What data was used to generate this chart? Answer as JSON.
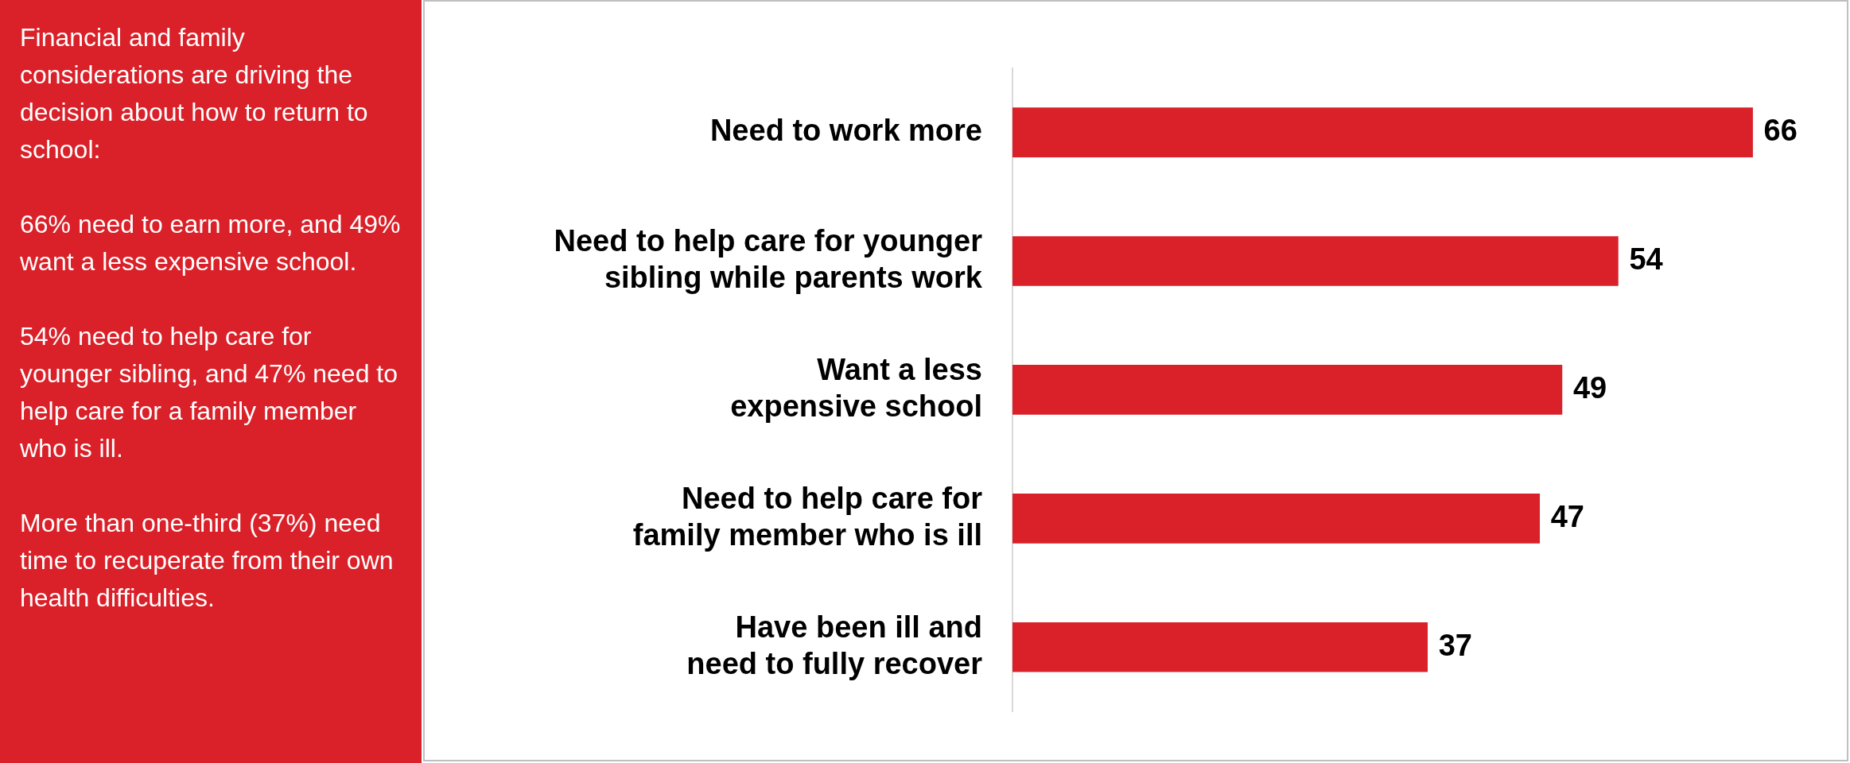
{
  "chart_data": {
    "type": "bar",
    "orientation": "horizontal",
    "categories": [
      "Need to work more",
      "Need to help care for younger sibling while parents work",
      "Want a less expensive school",
      "Need to help care for family member who is ill",
      "Have been ill and need to fully recover"
    ],
    "values": [
      66,
      54,
      49,
      47,
      37
    ],
    "color": "#da2028",
    "data_labels": true,
    "legend": false,
    "annotations": [
      "Financial and family considerations are driving the decision about how to return to school:",
      "66% need to earn more, and 49% want a less expensive school.",
      "54% need to help care for younger sibling, and 47% need to help care for a family member who is ill.",
      "More than one-third (37%) need time to recuperate from their own health difficulties."
    ]
  }
}
